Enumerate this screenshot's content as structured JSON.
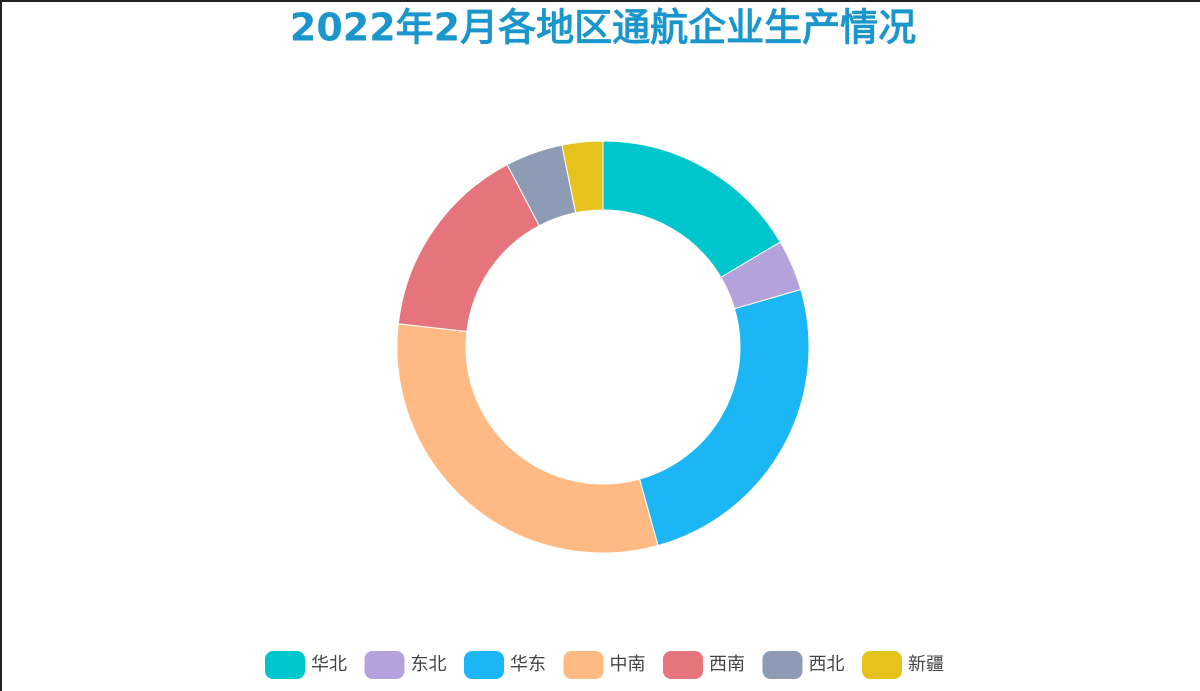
{
  "chart_data": {
    "type": "pie",
    "title": "2022年2月各地区通航企业生产情况",
    "categories": [
      "华北",
      "东北",
      "华东",
      "中南",
      "西南",
      "西北",
      "新疆"
    ],
    "values": [
      16.5,
      4,
      25.2,
      31.1,
      15.5,
      4.5,
      3.2
    ],
    "colors": [
      "#00c5cd",
      "#b5a2dc",
      "#1bb6f3",
      "#ffb982",
      "#e6747c",
      "#8d9cb4",
      "#e5c21c"
    ],
    "donut": true
  }
}
